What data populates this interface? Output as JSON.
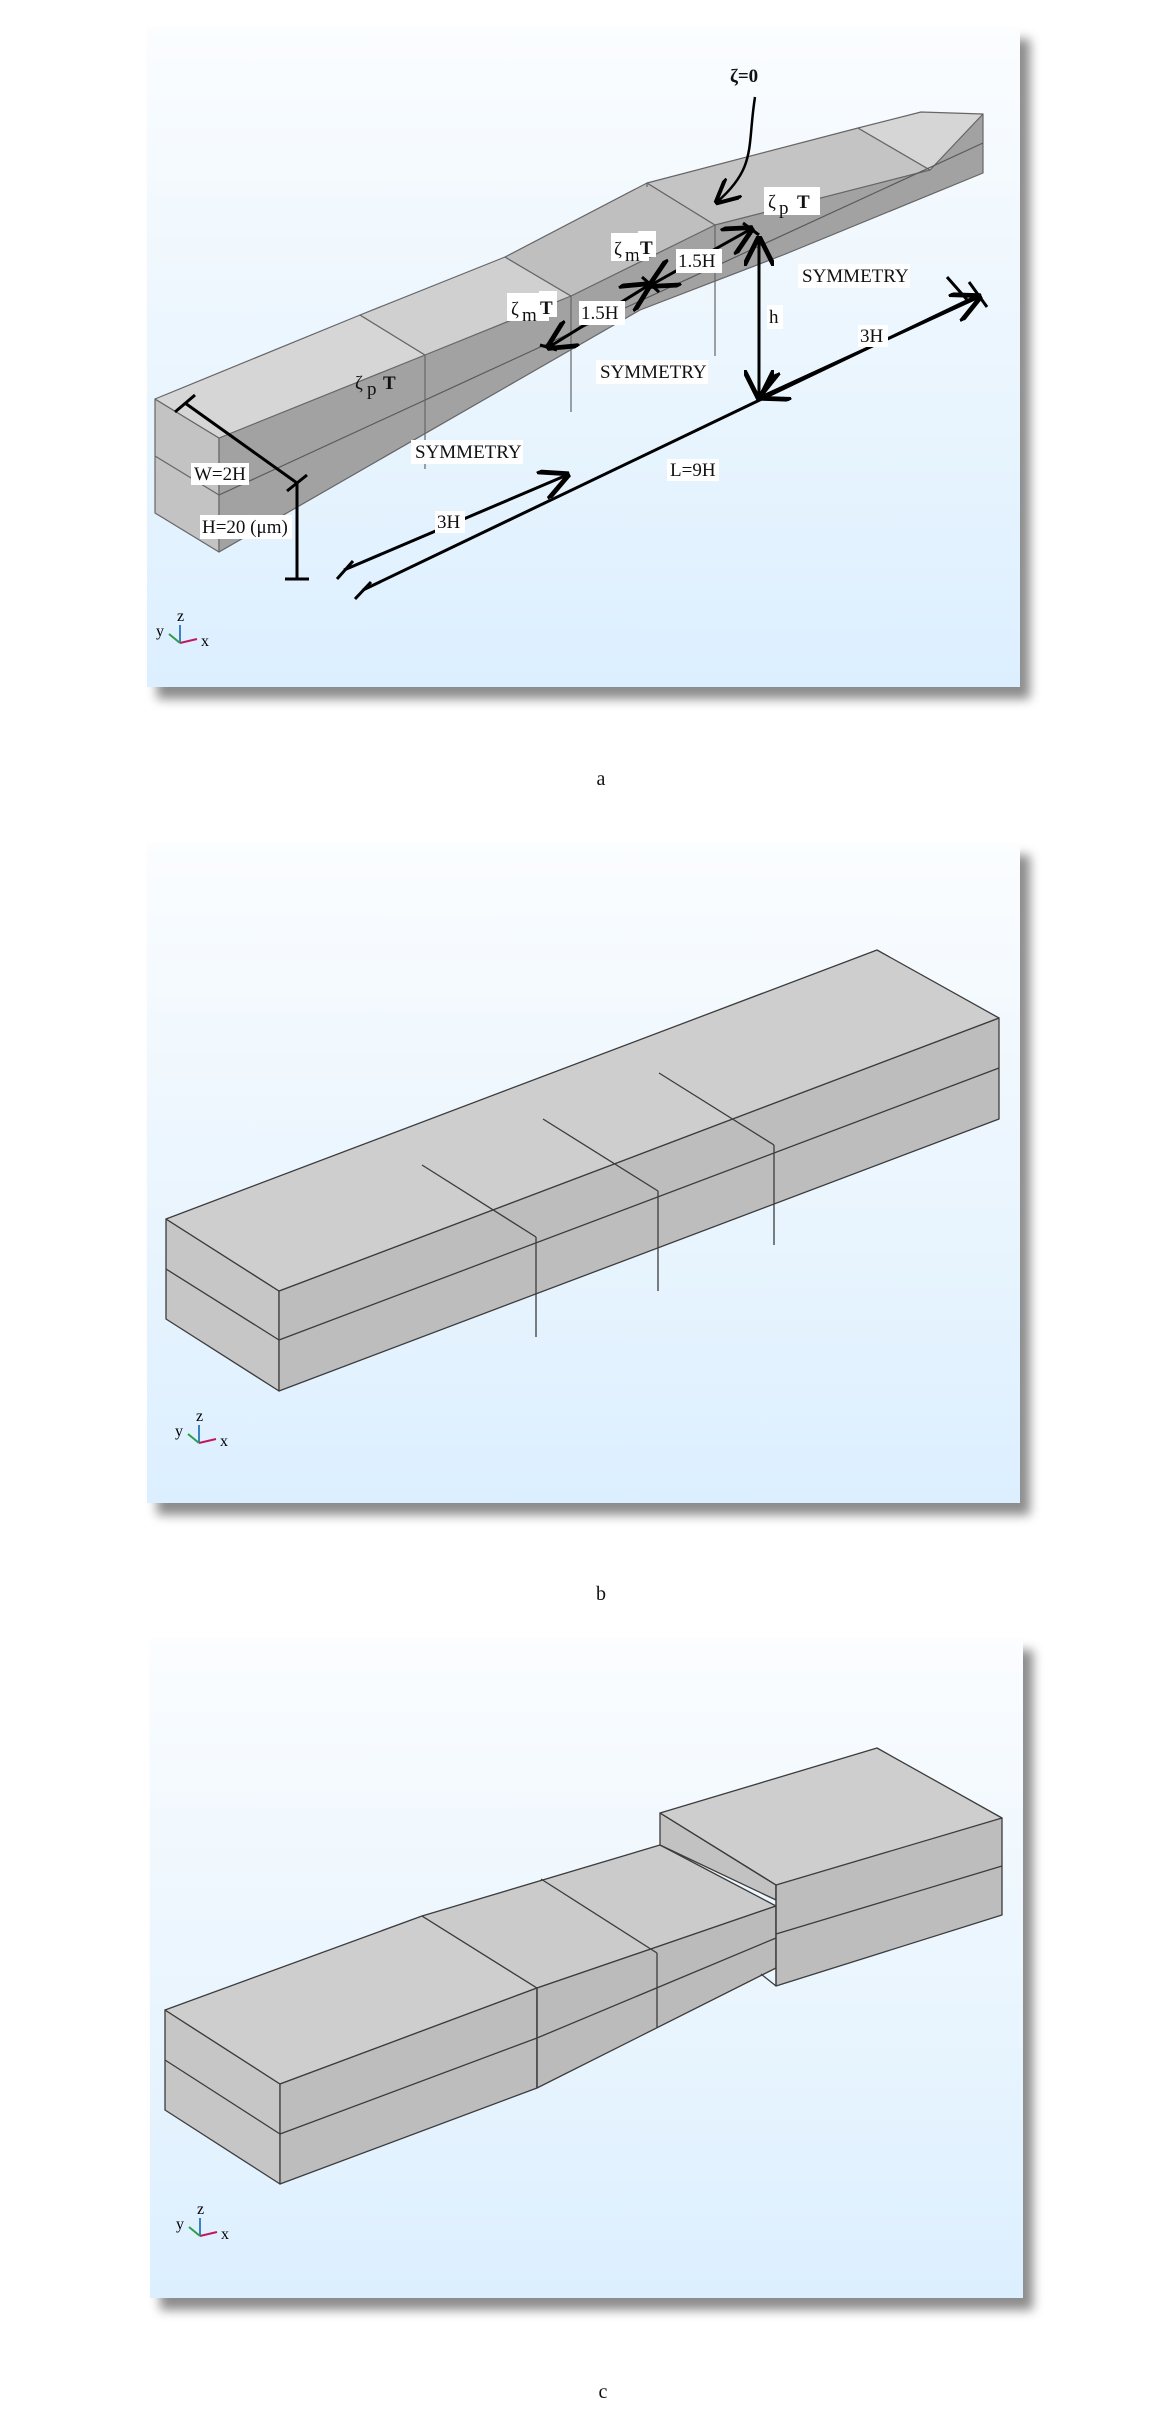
{
  "panels": [
    {
      "caption": "a",
      "labels": {
        "zeta0": "ζ=0",
        "zeta_p_left": "ζ",
        "zeta_p_left_sub": "p",
        "t_left": "T",
        "zeta_m_1": "ζ",
        "zeta_m_1_sub": "m",
        "t_m1": "T",
        "zeta_m_2": "ζ",
        "zeta_m_2_sub": "m",
        "t_m2": "T",
        "zeta_p_right": "ζ",
        "zeta_p_right_sub": "p",
        "t_right": "T",
        "sym_left": "SYMMETRY",
        "sym_mid": "SYMMETRY",
        "sym_right": "SYMMETRY",
        "dim_1_5h_a": "1.5H",
        "dim_1_5h_b": "1.5H",
        "dim_h": "h",
        "dim_3h_right": "3H",
        "dim_3h_left": "3H",
        "dim_l": "L=9H",
        "dim_w": "W=2H",
        "dim_height": "H=20 (μm)"
      }
    },
    {
      "caption": "b"
    },
    {
      "caption": "c"
    }
  ],
  "triad": {
    "x": "x",
    "y": "y",
    "z": "z"
  },
  "colors": {
    "top_face": "#cfcfcf",
    "front_face": "#bdbdbd",
    "end_face": "#c6c6c6",
    "edge": "#3c3c3c"
  }
}
